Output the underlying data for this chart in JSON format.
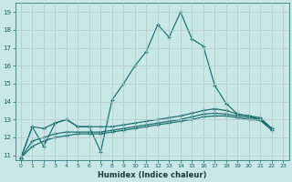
{
  "xlabel": "Humidex (Indice chaleur)",
  "background_color": "#c8e8e8",
  "grid_color": "#b0c8c8",
  "line_color": "#1a6b6b",
  "xlim": [
    -0.5,
    23.5
  ],
  "ylim": [
    10.75,
    19.5
  ],
  "xticks": [
    0,
    1,
    2,
    3,
    4,
    5,
    6,
    7,
    8,
    9,
    10,
    11,
    12,
    13,
    14,
    15,
    16,
    17,
    18,
    19,
    20,
    21,
    22,
    23
  ],
  "yticks": [
    11,
    12,
    13,
    14,
    15,
    16,
    17,
    18,
    19
  ],
  "x_values": [
    0,
    1,
    2,
    3,
    4,
    5,
    6,
    7,
    8,
    9,
    10,
    11,
    12,
    13,
    14,
    15,
    16,
    17,
    18,
    19,
    20,
    21,
    22
  ],
  "series": [
    [
      10.85,
      12.6,
      11.5,
      12.8,
      13.0,
      12.6,
      12.6,
      11.2,
      14.1,
      15.0,
      16.0,
      16.8,
      18.3,
      17.6,
      19.0,
      17.5,
      17.1,
      14.9,
      13.9,
      13.3,
      13.2,
      13.0,
      12.5
    ],
    [
      10.85,
      12.6,
      12.5,
      12.8,
      13.0,
      12.6,
      12.6,
      12.6,
      12.6,
      12.7,
      12.8,
      12.9,
      13.0,
      13.1,
      13.2,
      13.35,
      13.5,
      13.6,
      13.5,
      13.3,
      13.2,
      13.1,
      12.5
    ],
    [
      10.85,
      11.8,
      12.0,
      12.2,
      12.3,
      12.3,
      12.3,
      12.3,
      12.4,
      12.5,
      12.6,
      12.7,
      12.8,
      12.9,
      13.0,
      13.15,
      13.3,
      13.35,
      13.3,
      13.2,
      13.1,
      13.0,
      12.5
    ],
    [
      10.85,
      11.5,
      11.8,
      12.0,
      12.1,
      12.2,
      12.2,
      12.2,
      12.3,
      12.4,
      12.5,
      12.6,
      12.7,
      12.8,
      12.9,
      13.0,
      13.15,
      13.2,
      13.2,
      13.1,
      13.0,
      12.95,
      12.4
    ]
  ]
}
